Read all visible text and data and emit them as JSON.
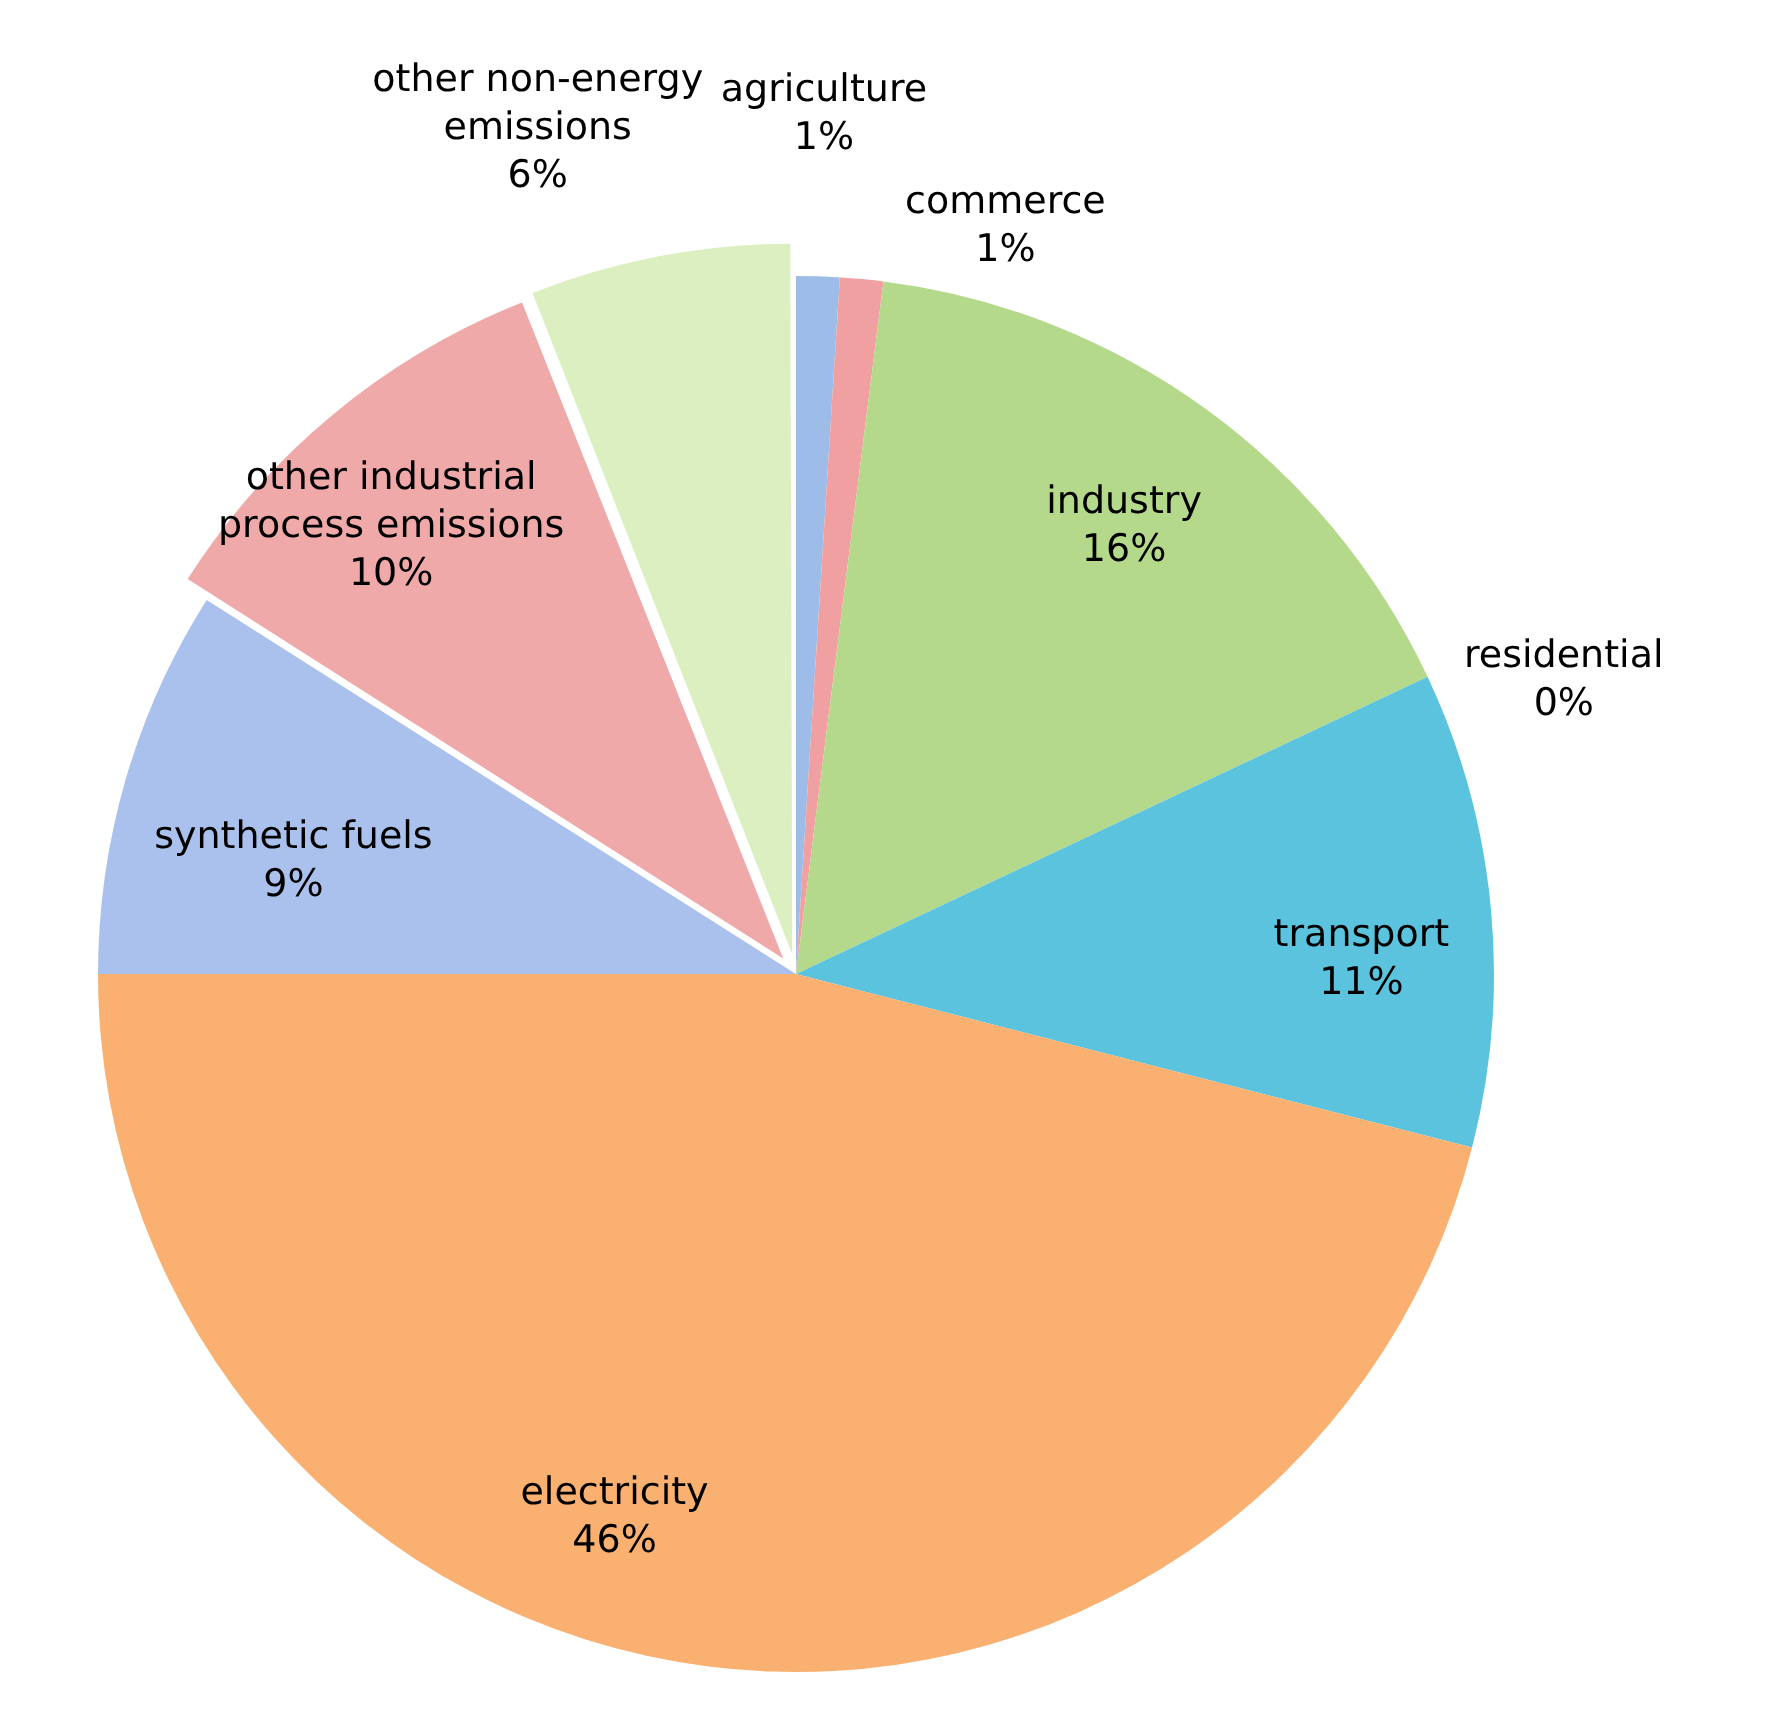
{
  "chart_data": {
    "type": "pie",
    "categories": [
      "agriculture",
      "commerce",
      "industry",
      "residential",
      "transport",
      "electricity",
      "synthetic fuels",
      "other industrial process emissions",
      "other non-energy emissions"
    ],
    "values": [
      1,
      1,
      16,
      0,
      11,
      46,
      9,
      10,
      6
    ],
    "value_labels": [
      "1%",
      "1%",
      "16%",
      "0%",
      "11%",
      "46%",
      "9%",
      "10%",
      "6%"
    ],
    "colors": [
      "#9dbde8",
      "#f0a0a0",
      "#b5d98a",
      "#b9a6d9",
      "#5cc3de",
      "#f9b070",
      "#a9c1ec",
      "#efa9a9",
      "#dcefc0"
    ],
    "legend": false
  }
}
